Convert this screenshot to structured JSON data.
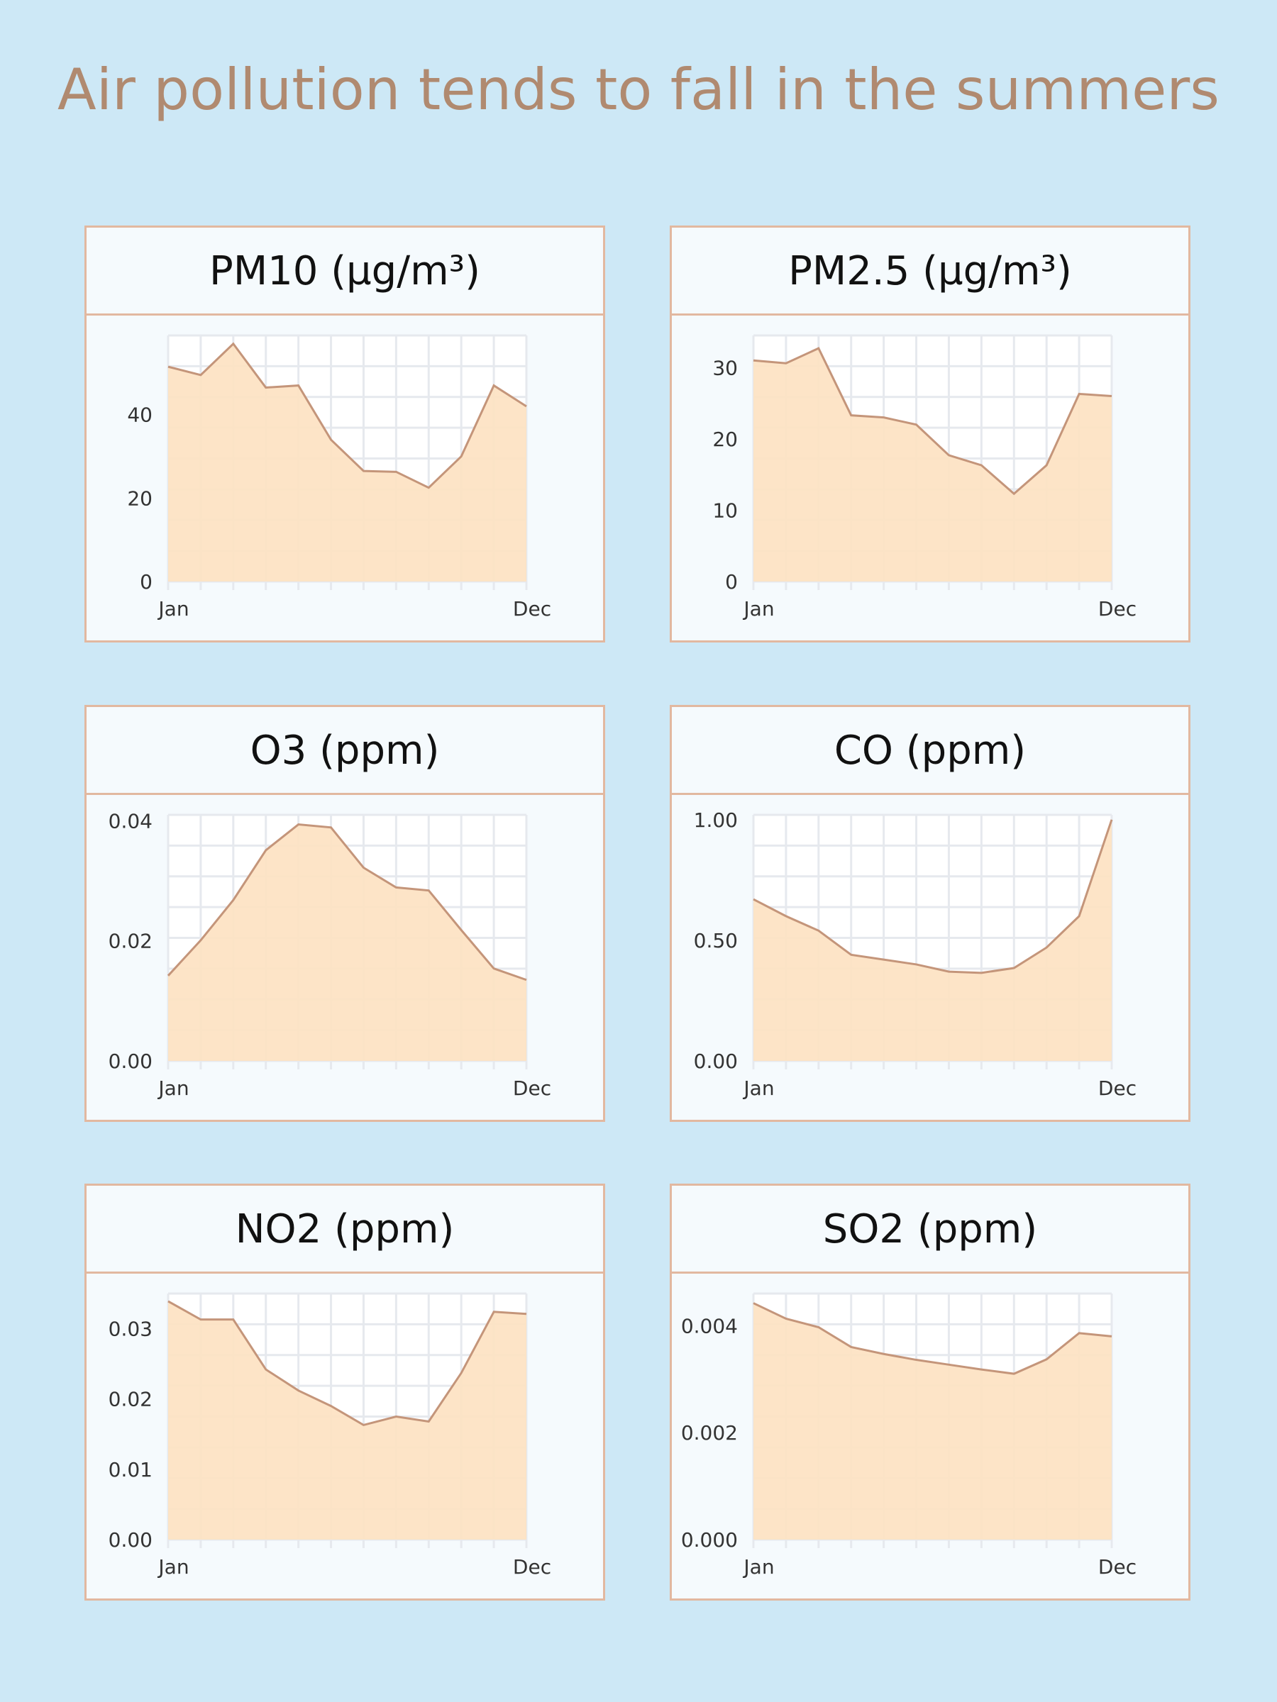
{
  "title": "Air pollution tends to fall in the summers",
  "colors": {
    "background": "#cde8f6",
    "title": "#b08a70",
    "fill": "#fde2c2",
    "line": "#c4957a",
    "border": "#e2b8a0"
  },
  "chart_data": [
    {
      "type": "area",
      "title": "PM10 (µg/m³)",
      "x_tick_labels": [
        "Jan",
        "Dec"
      ],
      "values": [
        51.5,
        49.5,
        57,
        46.5,
        47,
        34,
        26.5,
        26.3,
        22.5,
        30,
        47,
        42
      ],
      "ylim": [
        0,
        59
      ],
      "yticks": [
        "0",
        "20",
        "40"
      ],
      "ytick_values": [
        0,
        20,
        40
      ],
      "grid": true
    },
    {
      "type": "area",
      "title": "PM2.5 (µg/m³)",
      "x_tick_labels": [
        "Jan",
        "Dec"
      ],
      "values": [
        31,
        30.6,
        32.7,
        23.3,
        23,
        22,
        17.7,
        16.3,
        12.3,
        16.3,
        26.3,
        26
      ],
      "ylim": [
        0,
        34.5
      ],
      "yticks": [
        "0",
        "10",
        "20",
        "30"
      ],
      "ytick_values": [
        0,
        10,
        20,
        30
      ],
      "grid": true
    },
    {
      "type": "area",
      "title": "O3 (ppm)",
      "x_tick_labels": [
        "Jan",
        "Dec"
      ],
      "values": [
        0.0142,
        0.0201,
        0.0268,
        0.0351,
        0.0394,
        0.0389,
        0.0322,
        0.0289,
        0.0284,
        0.0218,
        0.0154,
        0.0135
      ],
      "ylim": [
        0,
        0.041
      ],
      "yticks": [
        "0.00",
        "0.02",
        "0.04"
      ],
      "ytick_values": [
        0,
        0.02,
        0.04
      ],
      "grid": true
    },
    {
      "type": "area",
      "title": "CO (ppm)",
      "x_tick_labels": [
        "Jan",
        "Dec"
      ],
      "values": [
        0.67,
        0.6,
        0.54,
        0.44,
        0.42,
        0.4,
        0.37,
        0.365,
        0.385,
        0.47,
        0.6,
        1.0
      ],
      "ylim": [
        0,
        1.02
      ],
      "yticks": [
        "0.00",
        "0.50",
        "1.00"
      ],
      "ytick_values": [
        0,
        0.5,
        1.0
      ],
      "grid": true
    },
    {
      "type": "area",
      "title": "NO2 (ppm)",
      "x_tick_labels": [
        "Jan",
        "Dec"
      ],
      "values": [
        0.0339,
        0.0313,
        0.0313,
        0.0242,
        0.0212,
        0.019,
        0.0163,
        0.0175,
        0.0168,
        0.0237,
        0.0324,
        0.0321
      ],
      "ylim": [
        0,
        0.035
      ],
      "yticks": [
        "0.00",
        "0.01",
        "0.02",
        "0.03"
      ],
      "ytick_values": [
        0,
        0.01,
        0.02,
        0.03
      ],
      "grid": true
    },
    {
      "type": "area",
      "title": "SO2  (ppm)",
      "x_tick_labels": [
        "Jan",
        "Dec"
      ],
      "values": [
        0.00442,
        0.00413,
        0.00397,
        0.0036,
        0.00347,
        0.00336,
        0.00327,
        0.00318,
        0.0031,
        0.00337,
        0.00386,
        0.0038
      ],
      "ylim": [
        0,
        0.0046
      ],
      "yticks": [
        "0.000",
        "0.002",
        "0.004"
      ],
      "ytick_values": [
        0,
        0.002,
        0.004
      ],
      "grid": true
    }
  ]
}
